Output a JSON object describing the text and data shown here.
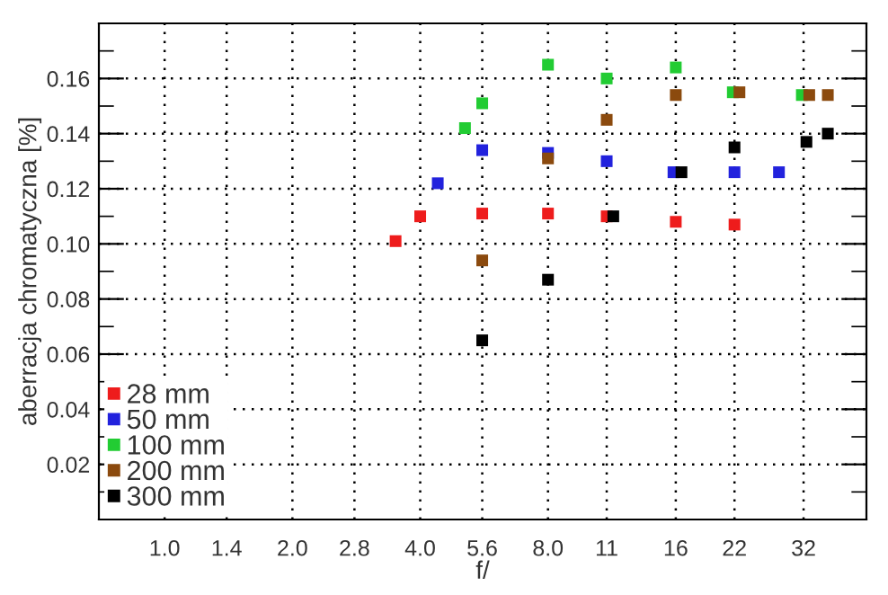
{
  "chart_data": {
    "type": "scatter",
    "xlabel": "f/",
    "ylabel": "aberracja chromatyczna [%]",
    "log": "x",
    "marker": "square",
    "grid": true,
    "legend": "bottom left",
    "xlim": [
      0.7,
      45
    ],
    "ylim": [
      0,
      0.18
    ],
    "xticks": [
      {
        "value": 1.0,
        "label": "1.0"
      },
      1.4,
      {
        "value": 2.0,
        "label": "2.0"
      },
      2.8,
      {
        "value": 4.0,
        "label": "4.0"
      },
      5.6,
      {
        "value": 8.0,
        "label": "8.0"
      },
      11,
      16,
      22,
      32
    ],
    "yticks": [
      {
        "value": 0.01,
        "label": null
      },
      0.02,
      {
        "value": 0.03,
        "label": null
      },
      0.04,
      {
        "value": 0.05,
        "label": null
      },
      0.06,
      {
        "value": 0.07,
        "label": null
      },
      0.08,
      {
        "value": 0.09,
        "label": null
      },
      {
        "value": 0.1,
        "label": "0.10"
      },
      {
        "value": 0.11,
        "label": null
      },
      0.12,
      {
        "value": 0.13,
        "label": null
      },
      0.14,
      {
        "value": 0.15,
        "label": null
      },
      0.16,
      {
        "value": 0.17,
        "label": null
      }
    ],
    "series": [
      {
        "name": "28 mm",
        "color": "#ee1c1c",
        "x": [
          3.5,
          4.0,
          5.6,
          8.0,
          11,
          16,
          22
        ],
        "values": [
          0.101,
          0.11,
          0.111,
          0.111,
          0.11,
          0.108,
          0.107
        ]
      },
      {
        "name": "50 mm",
        "color": "#2222dd",
        "x": [
          4.4,
          5.6,
          8.0,
          11,
          15.8,
          22,
          28
        ],
        "values": [
          0.122,
          0.134,
          0.133,
          0.13,
          0.126,
          0.126,
          0.126
        ]
      },
      {
        "name": "100 mm",
        "color": "#22cc33",
        "x": [
          5.1,
          5.6,
          8.0,
          11,
          16,
          21.8,
          31.7
        ],
        "values": [
          0.142,
          0.151,
          0.165,
          0.16,
          0.164,
          0.155,
          0.154
        ]
      },
      {
        "name": "200 mm",
        "color": "#8b4a0e",
        "x": [
          5.6,
          8.0,
          11,
          16,
          22.6,
          33,
          36.5
        ],
        "values": [
          0.094,
          0.131,
          0.145,
          0.154,
          0.155,
          0.154,
          0.154
        ]
      },
      {
        "name": "300 mm",
        "color": "#000000",
        "x": [
          5.6,
          8.0,
          11.4,
          16.5,
          22,
          32.5,
          36.5
        ],
        "values": [
          0.065,
          0.087,
          0.11,
          0.126,
          0.135,
          0.137,
          0.14
        ]
      }
    ]
  }
}
